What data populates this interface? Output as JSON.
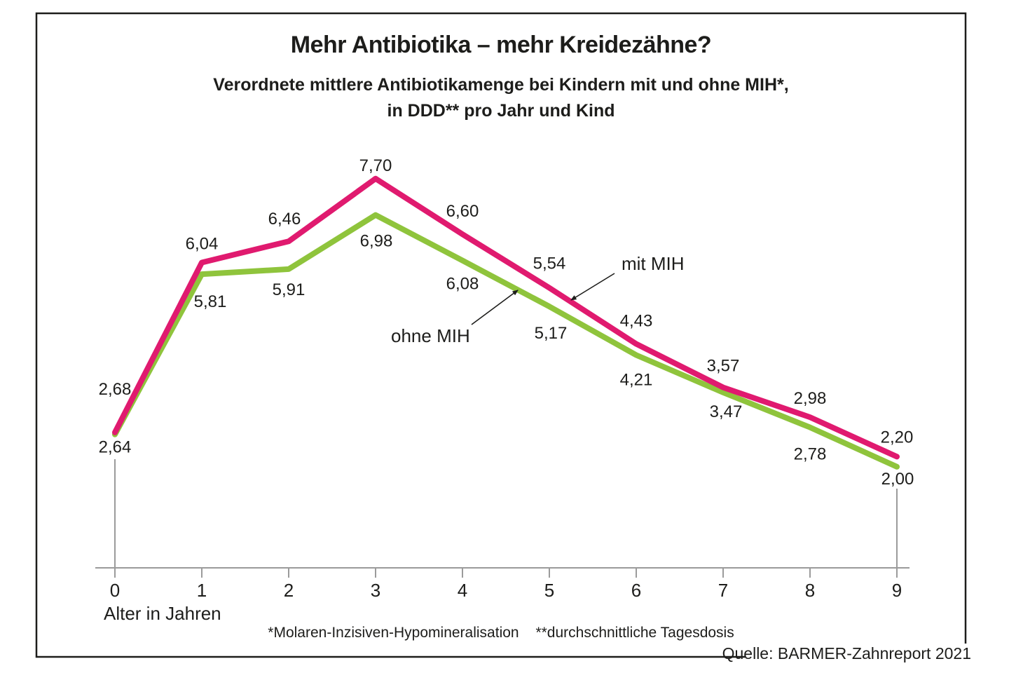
{
  "header": {
    "title": "Mehr Antibiotika – mehr Kreidezähne?",
    "subtitle_line1": "Verordnete mittlere Antibiotikamenge bei Kindern mit und ohne MIH*,",
    "subtitle_line2": "in DDD** pro Jahr und Kind"
  },
  "chart_data": {
    "type": "line",
    "x": [
      0,
      1,
      2,
      3,
      4,
      5,
      6,
      7,
      8,
      9
    ],
    "x_ticks": [
      "0",
      "1",
      "2",
      "3",
      "4",
      "5",
      "6",
      "7",
      "8",
      "9"
    ],
    "xlabel": "Alter in Jahren",
    "y_axis_visible": false,
    "grid": false,
    "legend_position": "inline-annotations",
    "value_label_decimal": "comma",
    "series": [
      {
        "name": "mit MIH",
        "color": "#e01a6f",
        "values": [
          2.68,
          6.04,
          6.46,
          7.7,
          6.6,
          5.54,
          4.43,
          3.57,
          2.98,
          2.2
        ]
      },
      {
        "name": "ohne MIH",
        "color": "#8fc43c",
        "values": [
          2.64,
          5.81,
          5.91,
          6.98,
          6.08,
          5.17,
          4.21,
          3.47,
          2.78,
          2.0
        ]
      }
    ],
    "axis_color": "#9b9b9b",
    "text_color": "#1d1d1b"
  },
  "footnotes": {
    "mih": "*Molaren-Inzisiven-Hypomineralisation",
    "ddd": "**durchschnittliche Tagesdosis"
  },
  "source": "Quelle: BARMER-Zahnreport 2021"
}
